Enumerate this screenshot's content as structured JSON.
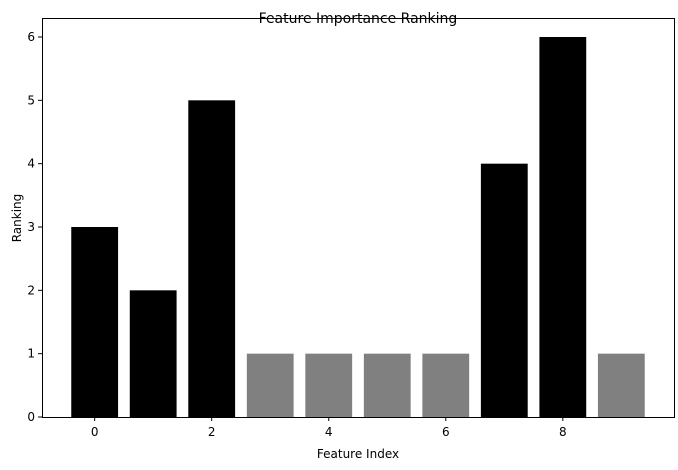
{
  "chart_data": {
    "type": "bar",
    "title": "Feature Importance Ranking",
    "xlabel": "Feature Index",
    "ylabel": "Ranking",
    "categories": [
      0,
      1,
      2,
      3,
      4,
      5,
      6,
      7,
      8,
      9
    ],
    "values": [
      3,
      2,
      5,
      1,
      1,
      1,
      1,
      4,
      6,
      1
    ],
    "bar_colors": [
      "#000000",
      "#000000",
      "#000000",
      "#808080",
      "#808080",
      "#808080",
      "#808080",
      "#000000",
      "#000000",
      "#808080"
    ],
    "xticks": [
      0,
      2,
      4,
      6,
      8
    ],
    "yticks": [
      0,
      1,
      2,
      3,
      4,
      5,
      6
    ],
    "xlim": [
      -0.9,
      9.9
    ],
    "ylim": [
      0,
      6.3
    ],
    "grid": false,
    "legend": false
  }
}
